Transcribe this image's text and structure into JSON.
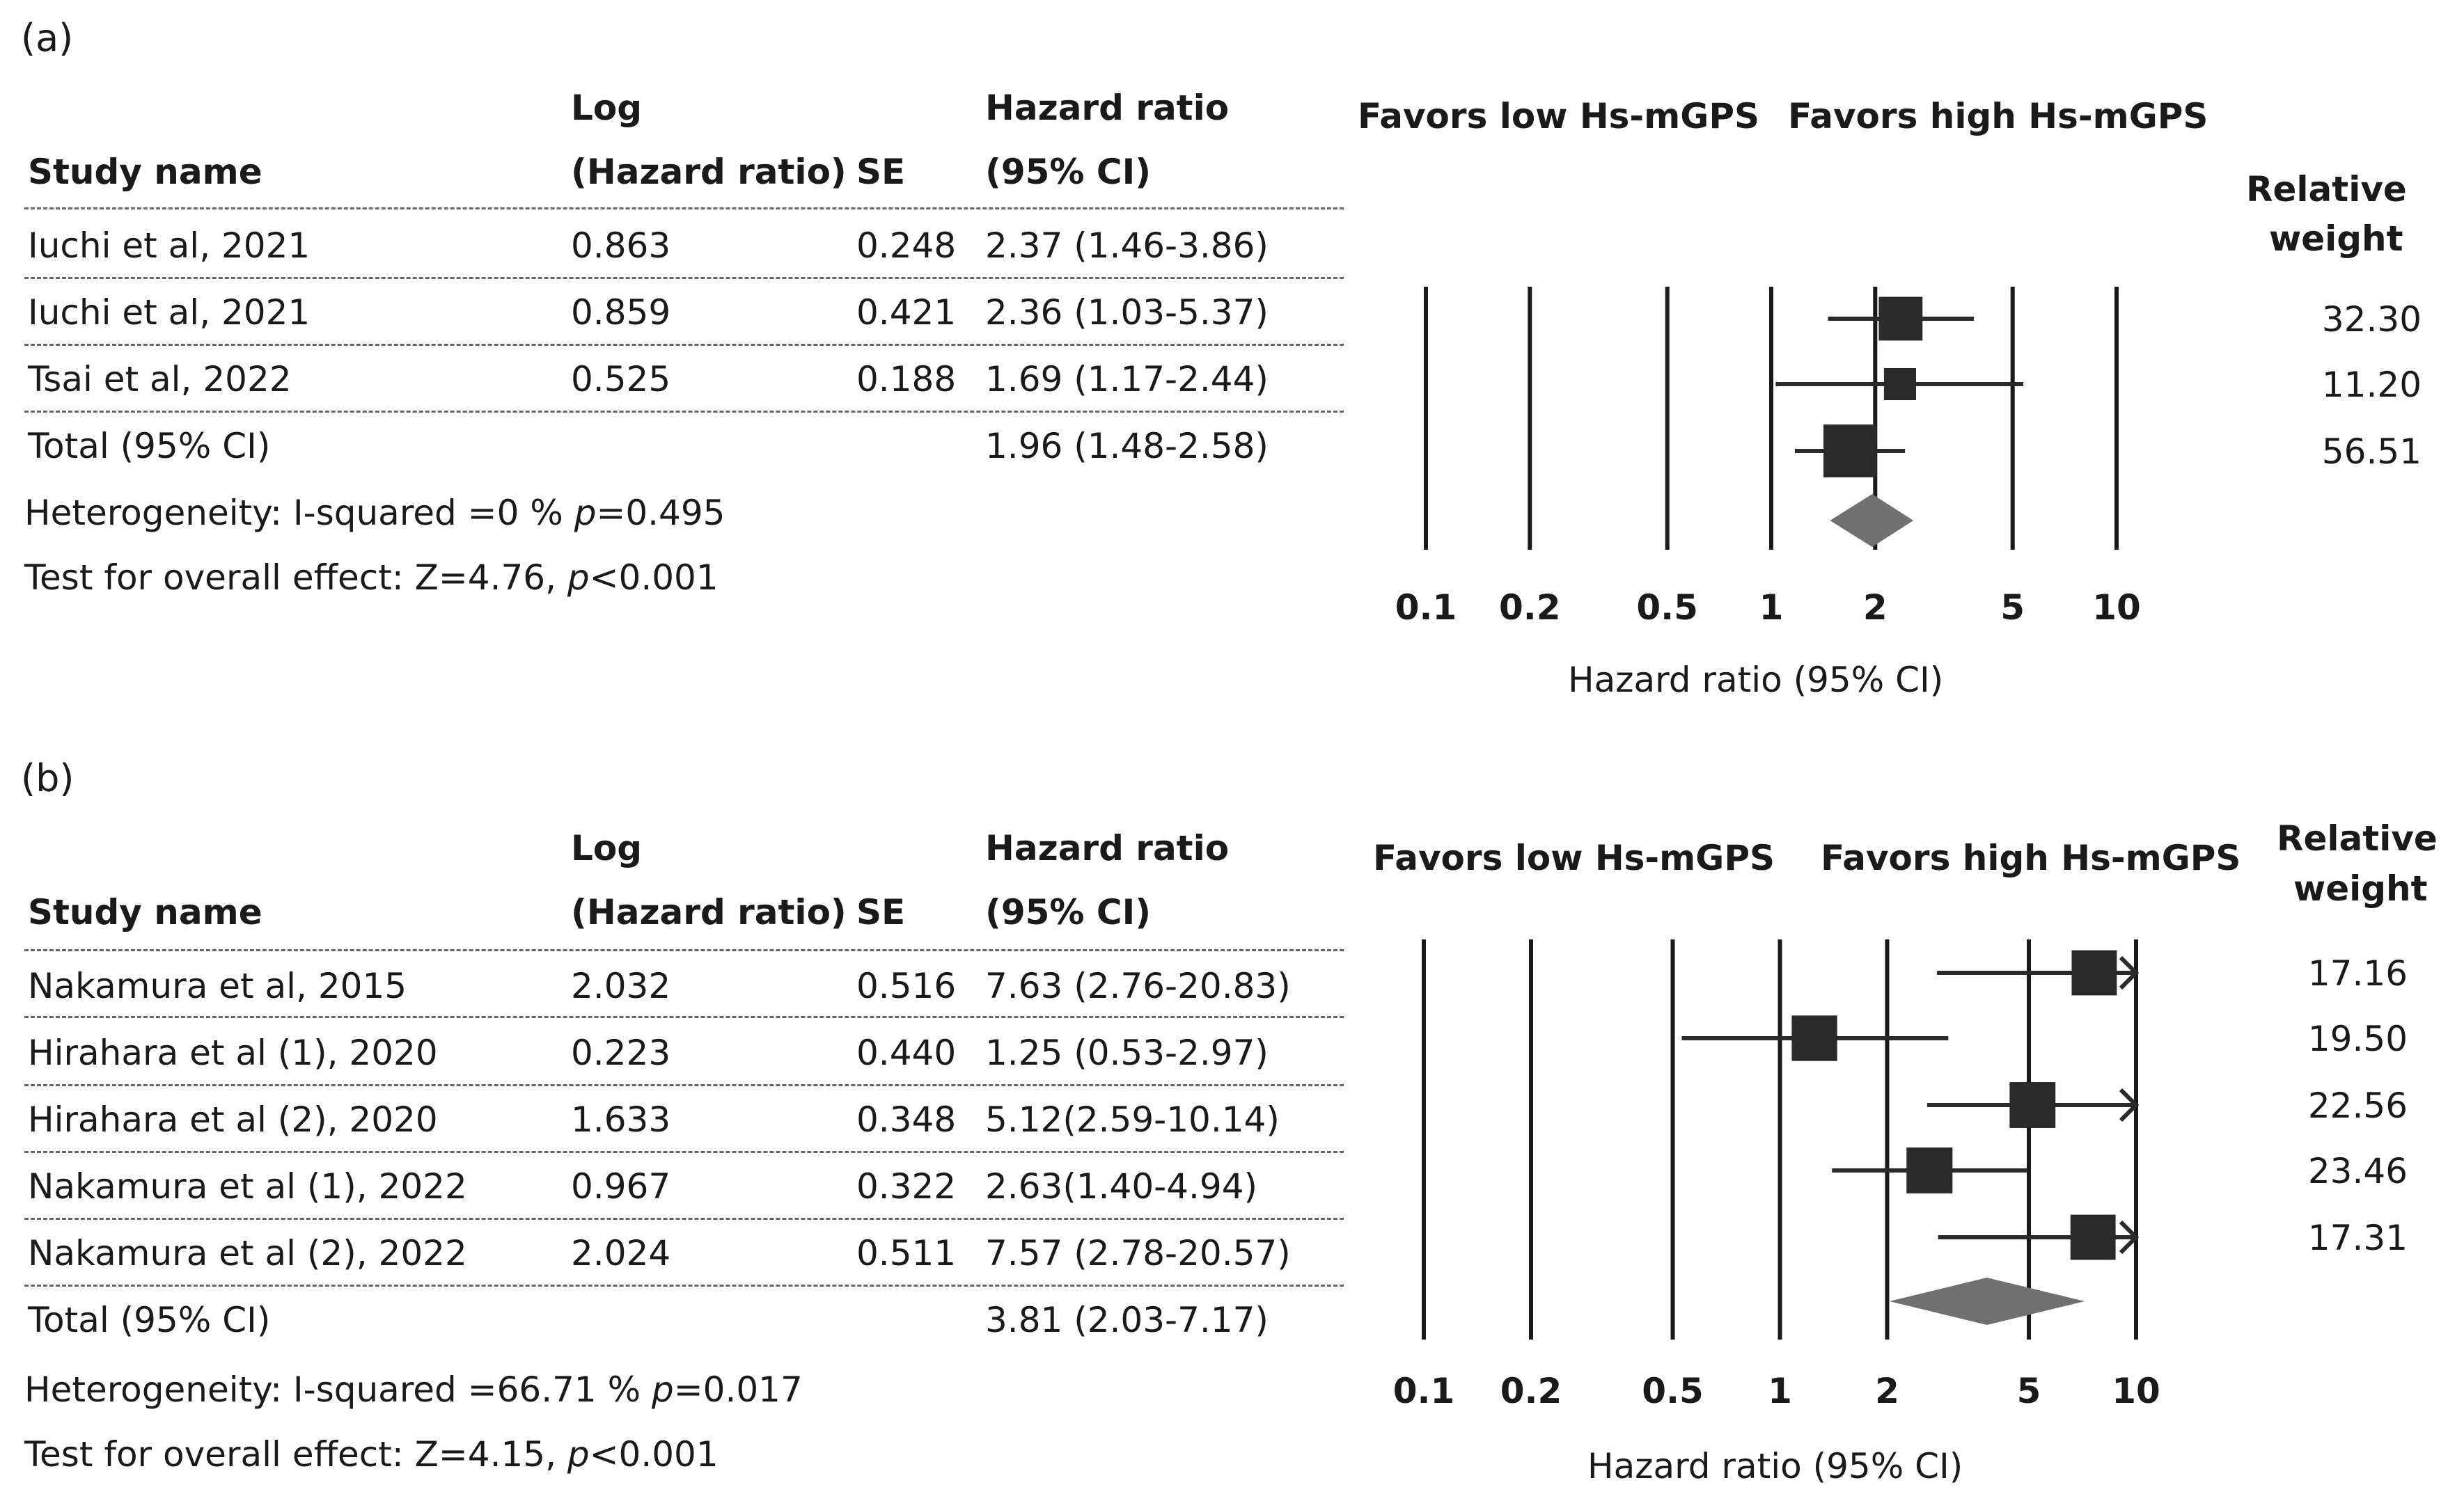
{
  "panels": [
    {
      "label": "(a)",
      "headers": {
        "study": "Study name",
        "log_line1": "Log",
        "log_line2": "(Hazard ratio)",
        "se": "SE",
        "hr_line1": "Hazard ratio",
        "hr_line2": "(95% CI)"
      },
      "rows": [
        {
          "study": "Iuchi et al, 2021",
          "log": "0.863",
          "se": "0.248",
          "hr": "2.37 (1.46-3.86)"
        },
        {
          "study": "Iuchi et al, 2021",
          "log": "0.859",
          "se": "0.421",
          "hr": "2.36 (1.03-5.37)"
        },
        {
          "study": "Tsai et al, 2022",
          "log": "0.525",
          "se": "0.188",
          "hr": "1.69 (1.17-2.44)"
        }
      ],
      "total": {
        "label": "Total (95% CI)",
        "hr": "1.96 (1.48-2.58)"
      },
      "heterogeneity": {
        "prefix": "Heterogeneity: I-squared =0 % ",
        "p": "p",
        "suffix": "=0.495"
      },
      "overall": {
        "prefix": "Test for overall effect: Z=4.76, ",
        "p": "p",
        "suffix": "<0.001"
      },
      "favors_low": "Favors low Hs-mGPS",
      "favors_high": "Favors high Hs-mGPS",
      "weight_line1": "Relative",
      "weight_line2": "weight",
      "weights": [
        "32.30",
        "11.20",
        "56.51"
      ],
      "axis_label": "Hazard ratio (95% CI)",
      "ticks": [
        "0.1",
        "0.2",
        "0.5",
        "1",
        "2",
        "5",
        "10"
      ]
    },
    {
      "label": "(b)",
      "headers": {
        "study": "Study name",
        "log_line1": "Log",
        "log_line2": "(Hazard ratio)",
        "se": "SE",
        "hr_line1": "Hazard ratio",
        "hr_line2": "(95% CI)"
      },
      "rows": [
        {
          "study": "Nakamura et al, 2015",
          "log": "2.032",
          "se": "0.516",
          "hr": "7.63 (2.76-20.83)"
        },
        {
          "study": "Hirahara et al (1), 2020",
          "log": "0.223",
          "se": "0.440",
          "hr": "1.25 (0.53-2.97)"
        },
        {
          "study": "Hirahara et al (2), 2020",
          "log": "1.633",
          "se": "0.348",
          "hr": "5.12(2.59-10.14)"
        },
        {
          "study": "Nakamura et al (1), 2022",
          "log": "0.967",
          "se": "0.322",
          "hr": "2.63(1.40-4.94)"
        },
        {
          "study": "Nakamura et al (2), 2022",
          "log": "2.024",
          "se": "0.511",
          "hr": "7.57 (2.78-20.57)"
        }
      ],
      "total": {
        "label": "Total (95% CI)",
        "hr": "3.81 (2.03-7.17)"
      },
      "heterogeneity": {
        "prefix": "Heterogeneity: I-squared =66.71 % ",
        "p": "p",
        "suffix": "=0.017"
      },
      "overall": {
        "prefix": "Test for overall effect: Z=4.15, ",
        "p": "p",
        "suffix": "<0.001"
      },
      "favors_low": "Favors low Hs-mGPS",
      "favors_high": "Favors high Hs-mGPS",
      "weight_line1": "Relative",
      "weight_line2": "weight",
      "weights": [
        "17.16",
        "19.50",
        "22.56",
        "23.46",
        "17.31"
      ],
      "axis_label": "Hazard ratio (95% CI)",
      "ticks": [
        "0.1",
        "0.2",
        "0.5",
        "1",
        "2",
        "5",
        "10"
      ]
    }
  ],
  "chart_data": [
    {
      "type": "forest",
      "panel": "(a)",
      "xscale": "log",
      "xlim": [
        0.1,
        10
      ],
      "xticks": [
        0.1,
        0.2,
        0.5,
        1,
        2,
        5,
        10
      ],
      "xlabel": "Hazard ratio (95% CI)",
      "studies": [
        {
          "name": "Iuchi et al, 2021",
          "hr": 2.37,
          "lower": 1.46,
          "upper": 3.86,
          "weight": 32.3
        },
        {
          "name": "Iuchi et al, 2021",
          "hr": 2.36,
          "lower": 1.03,
          "upper": 5.37,
          "weight": 11.2
        },
        {
          "name": "Tsai et al, 2022",
          "hr": 1.69,
          "lower": 1.17,
          "upper": 2.44,
          "weight": 56.51
        }
      ],
      "pooled": {
        "hr": 1.96,
        "lower": 1.48,
        "upper": 2.58
      }
    },
    {
      "type": "forest",
      "panel": "(b)",
      "xscale": "log",
      "xlim": [
        0.1,
        10
      ],
      "xticks": [
        0.1,
        0.2,
        0.5,
        1,
        2,
        5,
        10
      ],
      "xlabel": "Hazard ratio (95% CI)",
      "studies": [
        {
          "name": "Nakamura et al, 2015",
          "hr": 7.63,
          "lower": 2.76,
          "upper": 20.83,
          "weight": 17.16
        },
        {
          "name": "Hirahara et al (1), 2020",
          "hr": 1.25,
          "lower": 0.53,
          "upper": 2.97,
          "weight": 19.5
        },
        {
          "name": "Hirahara et al (2), 2020",
          "hr": 5.12,
          "lower": 2.59,
          "upper": 10.14,
          "weight": 22.56
        },
        {
          "name": "Nakamura et al (1), 2022",
          "hr": 2.63,
          "lower": 1.4,
          "upper": 4.94,
          "weight": 23.46
        },
        {
          "name": "Nakamura et al (2), 2022",
          "hr": 7.57,
          "lower": 2.78,
          "upper": 20.57,
          "weight": 17.31
        }
      ],
      "pooled": {
        "hr": 3.81,
        "lower": 2.03,
        "upper": 7.17
      }
    }
  ]
}
